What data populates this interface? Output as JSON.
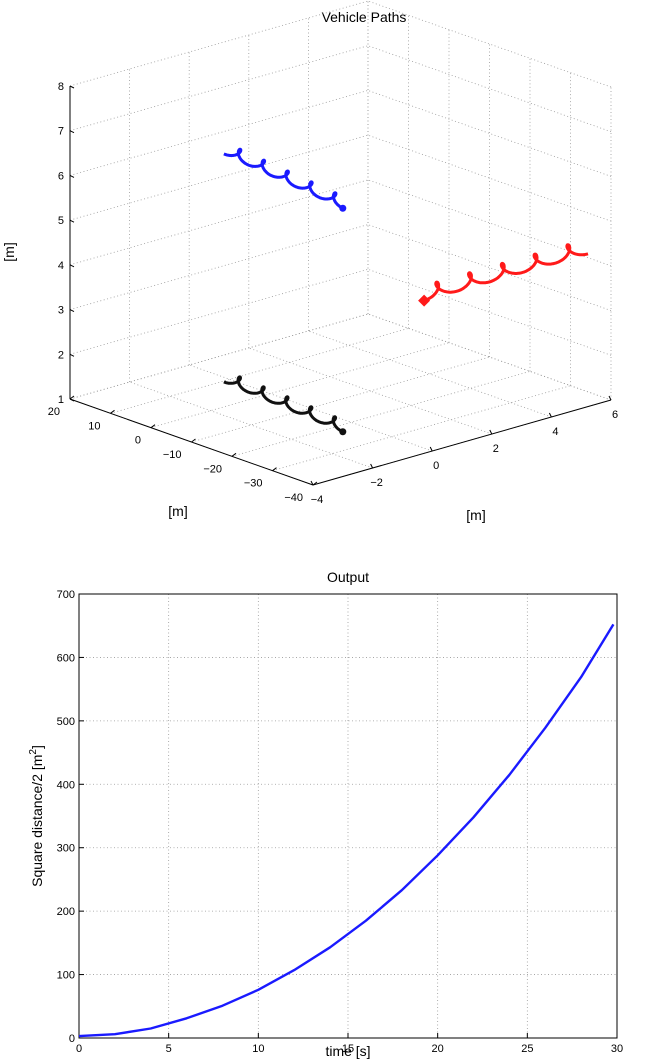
{
  "chart_data": [
    {
      "type": "line3d",
      "title": "Vehicle Paths",
      "xlabel": "[m]",
      "ylabel": "[m]",
      "zlabel": "[m]",
      "x_ticks": [
        "20",
        "10",
        "0",
        "−10",
        "−20",
        "−30",
        "−40"
      ],
      "y_ticks": [
        "−4",
        "−2",
        "0",
        "2",
        "4",
        "6"
      ],
      "z_ticks": [
        "1",
        "2",
        "3",
        "4",
        "5",
        "6",
        "7",
        "8"
      ],
      "xlim": [
        -40,
        20
      ],
      "ylim": [
        -4,
        6
      ],
      "zlim": [
        1,
        8
      ],
      "grid": true,
      "series": [
        {
          "color": "#1a1aff",
          "start": [
            -18,
            -4,
            7.7
          ],
          "end": [
            -40,
            -3,
            7.0
          ],
          "loops": 5,
          "marker_at": "end",
          "marker": "circle"
        },
        {
          "color": "#ff1a1a",
          "start": [
            -38,
            0,
            4.3
          ],
          "end": [
            -38,
            5.5,
            4.3
          ],
          "loops": 5,
          "marker_at": "start",
          "marker": "diamond"
        },
        {
          "color": "#111111",
          "start": [
            -18,
            -4,
            2.6
          ],
          "end": [
            -40,
            -3,
            2.0
          ],
          "loops": 5,
          "marker_at": "end",
          "marker": "circle"
        }
      ]
    },
    {
      "type": "line",
      "title": "Output",
      "xlabel": "time [s]",
      "ylabel": "Square distance/2 [m",
      "ylabel_sup": "2",
      "ylabel_end": "]",
      "xlim": [
        0,
        30
      ],
      "ylim": [
        0,
        700
      ],
      "x_ticks": [
        0,
        5,
        10,
        15,
        20,
        25,
        30
      ],
      "y_ticks": [
        0,
        100,
        200,
        300,
        400,
        500,
        600,
        700
      ],
      "grid": true,
      "series": [
        {
          "color": "#1a1aff",
          "x": [
            0,
            2,
            4,
            6,
            8,
            10,
            12,
            14,
            16,
            18,
            20,
            22,
            24,
            26,
            28,
            29.8
          ],
          "y": [
            3,
            6,
            15,
            31,
            51,
            76,
            107,
            143,
            185,
            233,
            288,
            348,
            415,
            489,
            569,
            652
          ]
        }
      ]
    }
  ]
}
